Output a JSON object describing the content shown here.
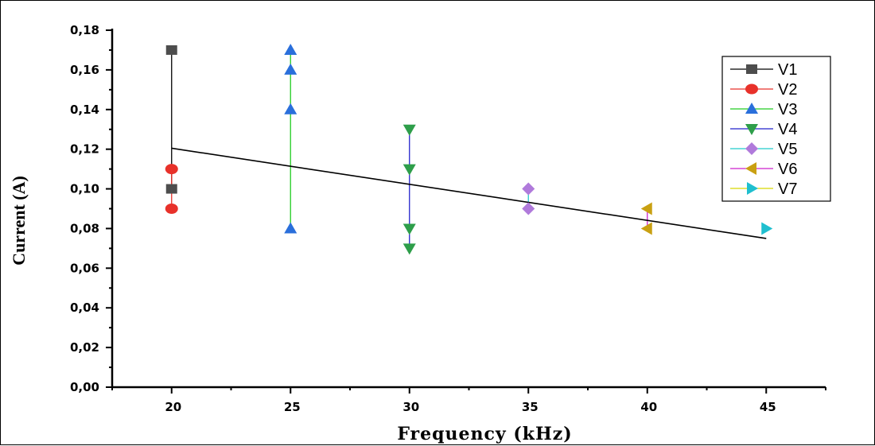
{
  "chart_data": {
    "type": "scatter",
    "xlabel": "Frequency (kHz)",
    "ylabel": "Current (A)",
    "xlim": [
      17.5,
      47.5
    ],
    "ylim": [
      0,
      0.18
    ],
    "x_ticks": [
      {
        "value": 20,
        "label": "20"
      },
      {
        "value": 25,
        "label": "25"
      },
      {
        "value": 30,
        "label": "30"
      },
      {
        "value": 35,
        "label": "35"
      },
      {
        "value": 40,
        "label": "40"
      },
      {
        "value": 45,
        "label": "45"
      }
    ],
    "y_ticks": [
      {
        "value": 0.0,
        "label": "0,00"
      },
      {
        "value": 0.02,
        "label": "0,02"
      },
      {
        "value": 0.04,
        "label": "0,04"
      },
      {
        "value": 0.06,
        "label": "0,06"
      },
      {
        "value": 0.08,
        "label": "0,08"
      },
      {
        "value": 0.1,
        "label": "0,10"
      },
      {
        "value": 0.12,
        "label": "0,12"
      },
      {
        "value": 0.14,
        "label": "0,14"
      },
      {
        "value": 0.16,
        "label": "0,16"
      },
      {
        "value": 0.18,
        "label": "0,18"
      }
    ],
    "grid": false,
    "legend_position": "top-right",
    "series": [
      {
        "name": "V1",
        "color": "#4d4d4d",
        "line_color": "#000000",
        "marker": "square",
        "points": [
          {
            "x": 20,
            "y": 0.17
          },
          {
            "x": 20,
            "y": 0.1
          }
        ]
      },
      {
        "name": "V2",
        "color": "#e8312a",
        "line_color": "#e8312a",
        "marker": "circle",
        "points": [
          {
            "x": 20,
            "y": 0.11
          },
          {
            "x": 20,
            "y": 0.09
          }
        ]
      },
      {
        "name": "V3",
        "color": "#2a6fdb",
        "line_color": "#22cc22",
        "marker": "triangle-up",
        "points": [
          {
            "x": 25,
            "y": 0.17
          },
          {
            "x": 25,
            "y": 0.16
          },
          {
            "x": 25,
            "y": 0.14
          },
          {
            "x": 25,
            "y": 0.08
          }
        ]
      },
      {
        "name": "V4",
        "color": "#2e9e4a",
        "line_color": "#2222cc",
        "marker": "triangle-down",
        "points": [
          {
            "x": 30,
            "y": 0.13
          },
          {
            "x": 30,
            "y": 0.11
          },
          {
            "x": 30,
            "y": 0.08
          },
          {
            "x": 30,
            "y": 0.07
          }
        ]
      },
      {
        "name": "V5",
        "color": "#b07adb",
        "line_color": "#22cccc",
        "marker": "diamond",
        "points": [
          {
            "x": 35,
            "y": 0.1
          },
          {
            "x": 35,
            "y": 0.09
          }
        ]
      },
      {
        "name": "V6",
        "color": "#c9a012",
        "line_color": "#cc22cc",
        "marker": "triangle-left",
        "points": [
          {
            "x": 40,
            "y": 0.09
          },
          {
            "x": 40,
            "y": 0.08
          }
        ]
      },
      {
        "name": "V7",
        "color": "#1fbfcf",
        "line_color": "#d8d800",
        "marker": "triangle-right",
        "points": [
          {
            "x": 45,
            "y": 0.08
          }
        ]
      }
    ],
    "trendline": {
      "color": "#000000",
      "points": [
        {
          "x": 20,
          "y": 0.1205
        },
        {
          "x": 45,
          "y": 0.075
        }
      ]
    }
  }
}
